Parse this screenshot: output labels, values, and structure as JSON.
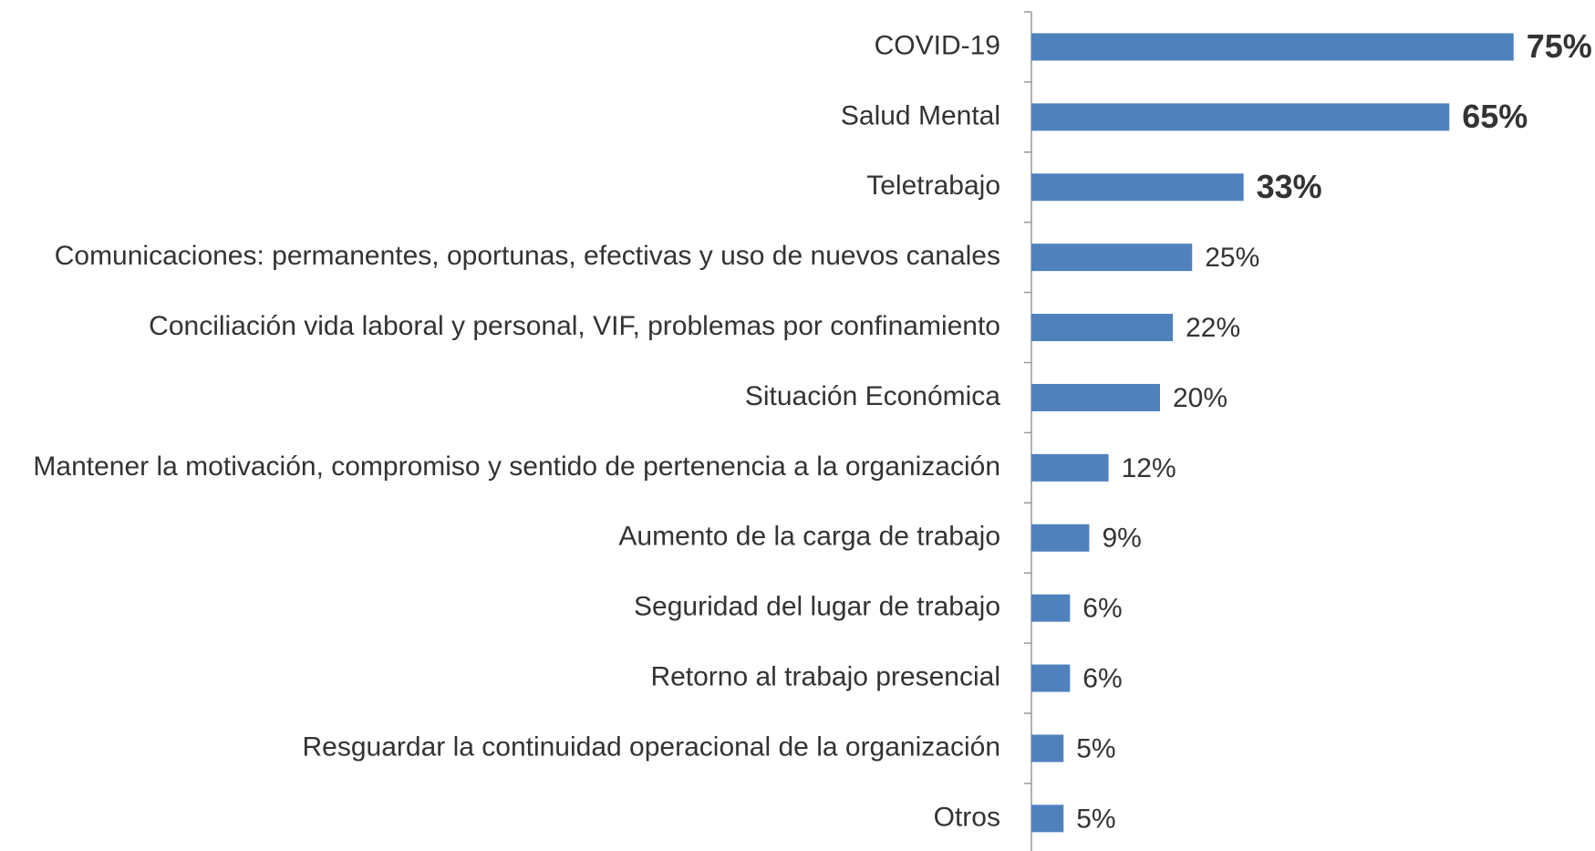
{
  "chart_data": {
    "type": "bar",
    "orientation": "horizontal",
    "color": "#4f81bd",
    "categories": [
      "COVID-19",
      "Salud Mental",
      "Teletrabajo",
      "Comunicaciones: permanentes, oportunas, efectivas y uso de nuevos canales",
      "Conciliación vida laboral y personal, VIF, problemas por confinamiento",
      "Situación Económica",
      "Mantener la motivación, compromiso y sentido de pertenencia a la organización",
      "Aumento de la carga de trabajo",
      "Seguridad del lugar de trabajo",
      "Retorno al trabajo presencial",
      "Resguardar la continuidad operacional de la organización",
      "Otros"
    ],
    "values": [
      75,
      65,
      33,
      25,
      22,
      20,
      12,
      9,
      6,
      6,
      5,
      5
    ],
    "value_labels": [
      "75%",
      "65%",
      "33%",
      "25%",
      "22%",
      "20%",
      "12%",
      "9%",
      "6%",
      "6%",
      "5%",
      "5%"
    ]
  }
}
